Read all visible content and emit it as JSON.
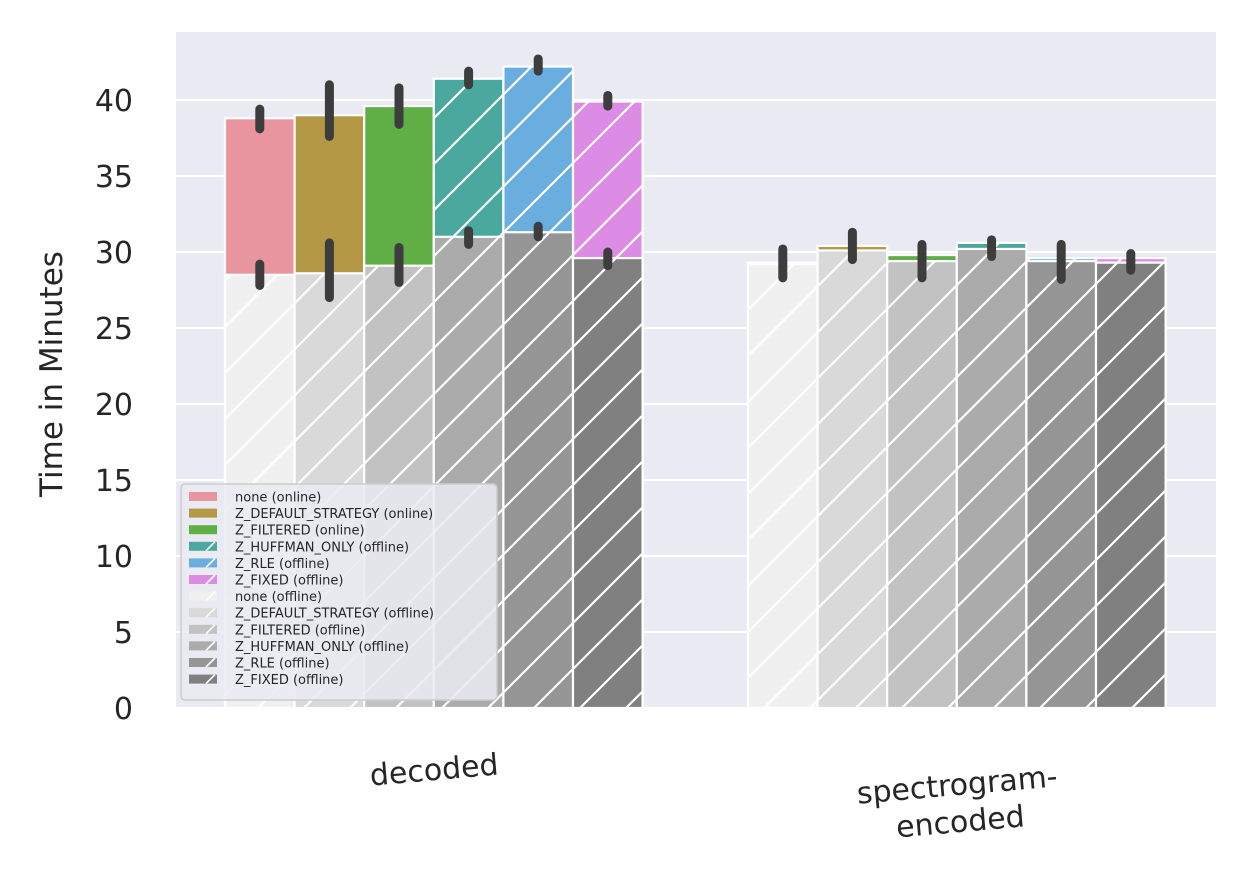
{
  "chart_data": {
    "type": "bar",
    "ylabel": "Time in Minutes",
    "xlabel": "",
    "ylim": [
      0,
      44.5
    ],
    "yticks": [
      0,
      5,
      10,
      15,
      20,
      25,
      30,
      35,
      40
    ],
    "grid": true,
    "legend_position": "lower-left",
    "categories": [
      {
        "id": "decoded",
        "lines": [
          "decoded"
        ]
      },
      {
        "id": "spectrogram-encoded",
        "lines": [
          "spectrogram-",
          "encoded"
        ]
      }
    ],
    "offline_series": [
      {
        "name": "none (offline)",
        "color": "#f0f0f0",
        "values": [
          28.5,
          29.2
        ],
        "err": [
          [
            27.8,
            29.2
          ],
          [
            28.3,
            30.2
          ]
        ]
      },
      {
        "name": "Z_DEFAULT_STRATEGY (offline)",
        "color": "#d9d9d9",
        "values": [
          28.6,
          30.1
        ],
        "err": [
          [
            27.0,
            30.6
          ],
          [
            29.5,
            31.3
          ]
        ]
      },
      {
        "name": "Z_FILTERED (offline)",
        "color": "#c2c2c2",
        "values": [
          29.1,
          29.4
        ],
        "err": [
          [
            28.0,
            30.3
          ],
          [
            28.3,
            30.5
          ]
        ]
      },
      {
        "name": "Z_HUFFMAN_ONLY (offline)",
        "color": "#ababab",
        "values": [
          31.0,
          30.2
        ],
        "err": [
          [
            30.5,
            31.4
          ],
          [
            29.7,
            30.8
          ]
        ]
      },
      {
        "name": "Z_RLE (offline)",
        "color": "#959595",
        "values": [
          31.3,
          29.4
        ],
        "err": [
          [
            31.0,
            31.7
          ],
          [
            28.2,
            30.5
          ]
        ]
      },
      {
        "name": "Z_FIXED (offline)",
        "color": "#808080",
        "values": [
          29.6,
          29.3
        ],
        "err": [
          [
            29.1,
            30.0
          ],
          [
            28.8,
            29.9
          ]
        ]
      }
    ],
    "online_series": [
      {
        "name": "none (online)",
        "color": "#e8959f",
        "hatch": false,
        "values": [
          38.8,
          29.3
        ],
        "err": [
          [
            38.1,
            39.4
          ],
          null
        ]
      },
      {
        "name": "Z_DEFAULT_STRATEGY (online)",
        "color": "#b59845",
        "hatch": false,
        "values": [
          39.0,
          30.4
        ],
        "err": [
          [
            37.6,
            41.0
          ],
          null
        ]
      },
      {
        "name": "Z_FILTERED (online)",
        "color": "#5fae46",
        "hatch": false,
        "values": [
          39.6,
          29.8
        ],
        "err": [
          [
            38.4,
            40.8
          ],
          null
        ]
      },
      {
        "name": "Z_HUFFMAN_ONLY (offline)",
        "color": "#4aa89f",
        "hatch": true,
        "values": [
          41.4,
          30.6
        ],
        "err": [
          [
            41.0,
            41.9
          ],
          null
        ]
      },
      {
        "name": "Z_RLE (offline)",
        "color": "#6aaee0",
        "hatch": true,
        "values": [
          42.2,
          29.6
        ],
        "err": [
          [
            41.9,
            42.7
          ],
          null
        ]
      },
      {
        "name": "Z_FIXED (offline)",
        "color": "#dd8ce6",
        "hatch": true,
        "values": [
          39.9,
          29.6
        ],
        "err": [
          [
            39.6,
            40.3
          ],
          null
        ]
      }
    ]
  }
}
